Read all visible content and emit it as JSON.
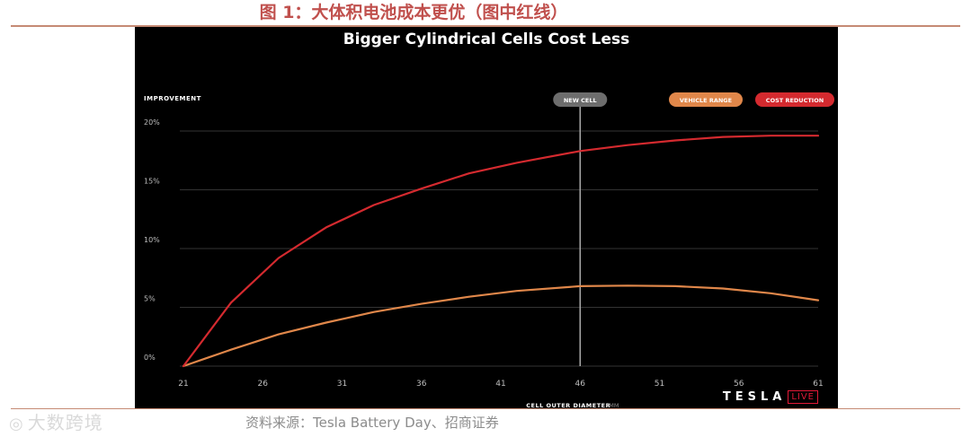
{
  "figure": {
    "title": "图 1：大体积电池成本更优（图中红线）",
    "source": "资料来源：Tesla Battery Day、招商证券",
    "watermark": "大数跨境"
  },
  "branding": {
    "word": "TESLA",
    "live": "LIVE"
  },
  "colors": {
    "cost_reduction": "#d42a2f",
    "vehicle_range": "#e0874a",
    "new_cell_marker": "#a8a8a8",
    "grid": "#333333",
    "panel": "#000000",
    "accent": "#c0504d"
  },
  "chart_data": {
    "type": "line",
    "title": "Bigger Cylindrical Cells Cost Less",
    "xlabel": "CELL OUTER DIAMETER",
    "xunit": "MM",
    "ylabel": "IMPROVEMENT",
    "xlim": [
      21,
      61
    ],
    "ylim": [
      0,
      20
    ],
    "xticks": [
      21,
      26,
      31,
      36,
      41,
      46,
      51,
      56,
      61
    ],
    "yticks": [
      {
        "value": 0,
        "label": "0%"
      },
      {
        "value": 5,
        "label": "5%"
      },
      {
        "value": 10,
        "label": "10%"
      },
      {
        "value": 15,
        "label": "15%"
      },
      {
        "value": 20,
        "label": "20%"
      }
    ],
    "grid": true,
    "legend_position": "top-right",
    "marker": {
      "x": 46,
      "label": "NEW CELL"
    },
    "series": [
      {
        "name": "VEHICLE RANGE",
        "color": "#e0874a",
        "points": [
          [
            21,
            0
          ],
          [
            22.5,
            0.7
          ],
          [
            24,
            1.4
          ],
          [
            27,
            2.7
          ],
          [
            30,
            3.7
          ],
          [
            33,
            4.6
          ],
          [
            36,
            5.3
          ],
          [
            39,
            5.9
          ],
          [
            42,
            6.4
          ],
          [
            46,
            6.8
          ],
          [
            49,
            6.85
          ],
          [
            52,
            6.8
          ],
          [
            55,
            6.6
          ],
          [
            58,
            6.2
          ],
          [
            61,
            5.6
          ]
        ]
      },
      {
        "name": "COST REDUCTION",
        "color": "#d42a2f",
        "points": [
          [
            21,
            0
          ],
          [
            24,
            5.4
          ],
          [
            27,
            9.2
          ],
          [
            30,
            11.8
          ],
          [
            33,
            13.7
          ],
          [
            36,
            15.1
          ],
          [
            39,
            16.4
          ],
          [
            42,
            17.3
          ],
          [
            46,
            18.3
          ],
          [
            49,
            18.8
          ],
          [
            52,
            19.2
          ],
          [
            55,
            19.5
          ],
          [
            58,
            19.6
          ],
          [
            61,
            19.6
          ]
        ]
      }
    ]
  }
}
